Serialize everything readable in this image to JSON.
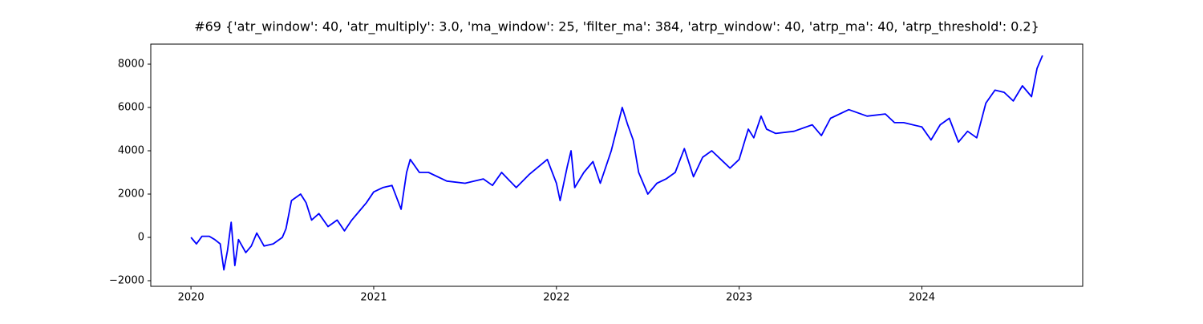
{
  "chart_data": {
    "type": "line",
    "title": "#69 {'atr_window': 40, 'atr_multiply': 3.0, 'ma_window': 25, 'filter_ma': 384, 'atrp_window': 40, 'atrp_ma': 40, 'atrp_threshold': 0.2}",
    "x": [
      2020.0,
      2020.03,
      2020.06,
      2020.1,
      2020.13,
      2020.16,
      2020.18,
      2020.2,
      2020.22,
      2020.24,
      2020.26,
      2020.3,
      2020.33,
      2020.36,
      2020.4,
      2020.45,
      2020.5,
      2020.52,
      2020.55,
      2020.6,
      2020.63,
      2020.66,
      2020.7,
      2020.75,
      2020.8,
      2020.84,
      2020.88,
      2020.92,
      2020.96,
      2021.0,
      2021.05,
      2021.1,
      2021.15,
      2021.18,
      2021.2,
      2021.25,
      2021.3,
      2021.4,
      2021.5,
      2021.6,
      2021.65,
      2021.7,
      2021.78,
      2021.85,
      2021.95,
      2022.0,
      2022.02,
      2022.06,
      2022.08,
      2022.1,
      2022.15,
      2022.2,
      2022.24,
      2022.3,
      2022.33,
      2022.36,
      2022.39,
      2022.42,
      2022.45,
      2022.5,
      2022.55,
      2022.6,
      2022.65,
      2022.7,
      2022.75,
      2022.8,
      2022.85,
      2022.9,
      2022.95,
      2023.0,
      2023.05,
      2023.08,
      2023.12,
      2023.15,
      2023.2,
      2023.3,
      2023.4,
      2023.45,
      2023.5,
      2023.6,
      2023.7,
      2023.8,
      2023.85,
      2023.9,
      2024.0,
      2024.05,
      2024.1,
      2024.15,
      2024.2,
      2024.25,
      2024.3,
      2024.35,
      2024.4,
      2024.45,
      2024.5,
      2024.55,
      2024.6,
      2024.63,
      2024.66
    ],
    "series": [
      {
        "color": "#0000ff",
        "values": [
          0,
          -300,
          50,
          50,
          -100,
          -300,
          -1500,
          -600,
          700,
          -1300,
          -100,
          -700,
          -400,
          200,
          -400,
          -300,
          0,
          400,
          1700,
          2000,
          1600,
          800,
          1100,
          500,
          800,
          300,
          800,
          1200,
          1600,
          2100,
          2300,
          2400,
          1300,
          3000,
          3600,
          3000,
          3000,
          2600,
          2500,
          2700,
          2400,
          3000,
          2300,
          2900,
          3600,
          2500,
          1700,
          3300,
          4000,
          2300,
          3000,
          3500,
          2500,
          4000,
          5000,
          6000,
          5200,
          4500,
          3000,
          2000,
          2500,
          2700,
          3000,
          4100,
          2800,
          3700,
          4000,
          3600,
          3200,
          3600,
          5000,
          4600,
          5600,
          5000,
          4800,
          4900,
          5200,
          4700,
          5500,
          5900,
          5600,
          5700,
          5300,
          5300,
          5100,
          4500,
          5200,
          5500,
          4400,
          4900,
          4600,
          6200,
          6800,
          6700,
          6300,
          7000,
          6500,
          7800,
          8400
        ]
      }
    ],
    "xlim": [
      2019.78,
      2024.88
    ],
    "xticks": [
      2020,
      2021,
      2022,
      2023,
      2024
    ],
    "ylim": [
      -2259,
      8926
    ],
    "yticks": [
      {
        "value": -2000,
        "label": "−2000"
      },
      0,
      2000,
      4000,
      6000,
      8000
    ]
  }
}
